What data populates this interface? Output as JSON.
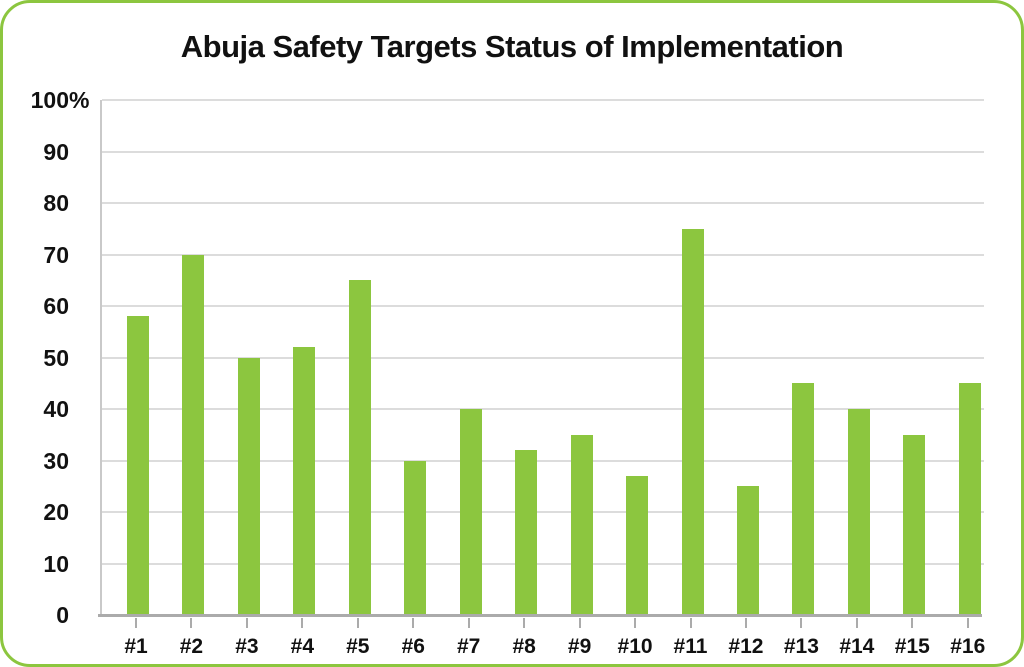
{
  "chart_data": {
    "type": "bar",
    "title": "Abuja Safety Targets Status of Implementation",
    "categories": [
      "#1",
      "#2",
      "#3",
      "#4",
      "#5",
      "#6",
      "#7",
      "#8",
      "#9",
      "#10",
      "#11",
      "#12",
      "#13",
      "#14",
      "#15",
      "#16"
    ],
    "values": [
      58,
      70,
      50,
      52,
      65,
      30,
      40,
      32,
      35,
      27,
      75,
      25,
      45,
      40,
      35,
      45
    ],
    "xlabel": "",
    "ylabel": "",
    "ylim": [
      0,
      100
    ],
    "ytick_interval": 10,
    "ytick_labels_top_to_bottom": [
      "100%",
      "90",
      "80",
      "70",
      "60",
      "50",
      "40",
      "30",
      "20",
      "10",
      "0"
    ],
    "grid": true,
    "legend_position": "none",
    "colors": {
      "bar": "#8CC63F",
      "frame_border": "#8CC63F",
      "gridline": "#DCDCDC",
      "axis": "#ABABAB",
      "y_axis_line": "#C9C9C9",
      "text": "#111111",
      "background": "#FFFFFF"
    }
  }
}
